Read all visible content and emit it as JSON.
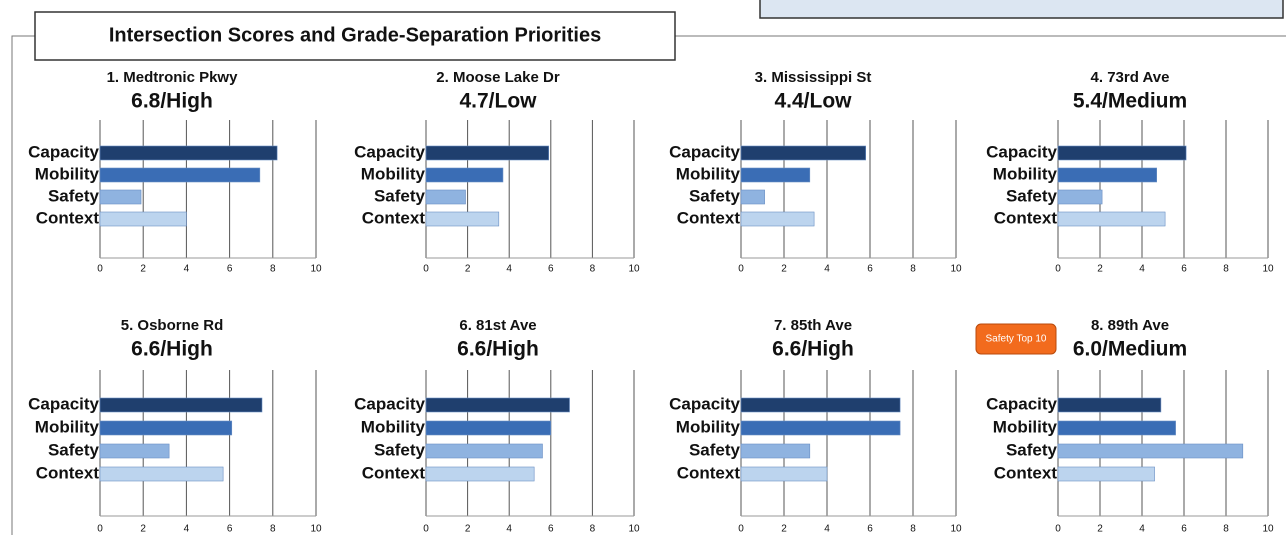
{
  "title": "Intersection Scores and Grade-Separation Priorities",
  "chart_data": [
    {
      "type": "bar",
      "orientation": "horizontal",
      "title": "1. Medtronic Pkwy",
      "subtitle": "6.8/High",
      "categories": [
        "Capacity",
        "Mobility",
        "Safety",
        "Context"
      ],
      "values": [
        8.2,
        7.4,
        1.9,
        4.0
      ],
      "colors": [
        "#1f3f6e",
        "#3a6db5",
        "#8fb3e0",
        "#bcd4ee"
      ],
      "xlim": [
        0,
        10
      ],
      "xticks": [
        0,
        2,
        4,
        6,
        8,
        10
      ],
      "grid": true
    },
    {
      "type": "bar",
      "orientation": "horizontal",
      "title": "2. Moose Lake Dr",
      "subtitle": "4.7/Low",
      "categories": [
        "Capacity",
        "Mobility",
        "Safety",
        "Context"
      ],
      "values": [
        5.9,
        3.7,
        1.9,
        3.5
      ],
      "colors": [
        "#1f3f6e",
        "#3a6db5",
        "#8fb3e0",
        "#bcd4ee"
      ],
      "xlim": [
        0,
        10
      ],
      "xticks": [
        0,
        2,
        4,
        6,
        8,
        10
      ],
      "grid": true
    },
    {
      "type": "bar",
      "orientation": "horizontal",
      "title": "3. Mississippi St",
      "subtitle": "4.4/Low",
      "categories": [
        "Capacity",
        "Mobility",
        "Safety",
        "Context"
      ],
      "values": [
        5.8,
        3.2,
        1.1,
        3.4
      ],
      "colors": [
        "#1f3f6e",
        "#3a6db5",
        "#8fb3e0",
        "#bcd4ee"
      ],
      "xlim": [
        0,
        10
      ],
      "xticks": [
        0,
        2,
        4,
        6,
        8,
        10
      ],
      "grid": true
    },
    {
      "type": "bar",
      "orientation": "horizontal",
      "title": "4. 73rd Ave",
      "subtitle": "5.4/Medium",
      "categories": [
        "Capacity",
        "Mobility",
        "Safety",
        "Context"
      ],
      "values": [
        6.1,
        4.7,
        2.1,
        5.1
      ],
      "colors": [
        "#1f3f6e",
        "#3a6db5",
        "#8fb3e0",
        "#bcd4ee"
      ],
      "xlim": [
        0,
        10
      ],
      "xticks": [
        0,
        2,
        4,
        6,
        8,
        10
      ],
      "grid": true
    },
    {
      "type": "bar",
      "orientation": "horizontal",
      "title": "5. Osborne Rd",
      "subtitle": "6.6/High",
      "categories": [
        "Capacity",
        "Mobility",
        "Safety",
        "Context"
      ],
      "values": [
        7.5,
        6.1,
        3.2,
        5.7
      ],
      "colors": [
        "#1f3f6e",
        "#3a6db5",
        "#8fb3e0",
        "#bcd4ee"
      ],
      "xlim": [
        0,
        10
      ],
      "xticks": [
        0,
        2,
        4,
        6,
        8,
        10
      ],
      "grid": true
    },
    {
      "type": "bar",
      "orientation": "horizontal",
      "title": "6. 81st Ave",
      "subtitle": "6.6/High",
      "categories": [
        "Capacity",
        "Mobility",
        "Safety",
        "Context"
      ],
      "values": [
        6.9,
        6.0,
        5.6,
        5.2
      ],
      "colors": [
        "#1f3f6e",
        "#3a6db5",
        "#8fb3e0",
        "#bcd4ee"
      ],
      "xlim": [
        0,
        10
      ],
      "xticks": [
        0,
        2,
        4,
        6,
        8,
        10
      ],
      "grid": true
    },
    {
      "type": "bar",
      "orientation": "horizontal",
      "title": "7. 85th Ave",
      "subtitle": "6.6/High",
      "categories": [
        "Capacity",
        "Mobility",
        "Safety",
        "Context"
      ],
      "values": [
        7.4,
        7.4,
        3.2,
        4.0
      ],
      "colors": [
        "#1f3f6e",
        "#3a6db5",
        "#8fb3e0",
        "#bcd4ee"
      ],
      "xlim": [
        0,
        10
      ],
      "xticks": [
        0,
        2,
        4,
        6,
        8,
        10
      ],
      "grid": true
    },
    {
      "type": "bar",
      "orientation": "horizontal",
      "title": "8. 89th Ave",
      "subtitle": "6.0/Medium",
      "annotation": "Safety Top 10",
      "categories": [
        "Capacity",
        "Mobility",
        "Safety",
        "Context"
      ],
      "values": [
        4.9,
        5.6,
        8.8,
        4.6
      ],
      "colors": [
        "#1f3f6e",
        "#3a6db5",
        "#8fb3e0",
        "#bcd4ee"
      ],
      "xlim": [
        0,
        10
      ],
      "xticks": [
        0,
        2,
        4,
        6,
        8,
        10
      ],
      "grid": true
    }
  ]
}
